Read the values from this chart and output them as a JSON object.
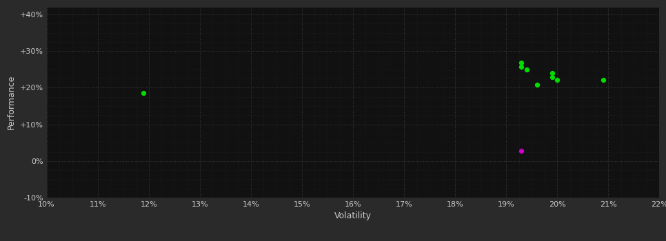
{
  "background_color": "#2a2a2a",
  "plot_bg_color": "#111111",
  "grid_color": "#444444",
  "text_color": "#cccccc",
  "xlabel": "Volatility",
  "ylabel": "Performance",
  "xlim": [
    0.1,
    0.22
  ],
  "ylim": [
    -0.1,
    0.42
  ],
  "xticks": [
    0.1,
    0.11,
    0.12,
    0.13,
    0.14,
    0.15,
    0.16,
    0.17,
    0.18,
    0.19,
    0.2,
    0.21,
    0.22
  ],
  "yticks": [
    -0.1,
    0.0,
    0.1,
    0.2,
    0.3,
    0.4
  ],
  "ytick_labels": [
    "-10%",
    "0%",
    "+10%",
    "+20%",
    "+30%",
    "+40%"
  ],
  "green_points": [
    [
      0.119,
      0.185
    ],
    [
      0.193,
      0.268
    ],
    [
      0.193,
      0.258
    ],
    [
      0.194,
      0.25
    ],
    [
      0.196,
      0.208
    ],
    [
      0.199,
      0.24
    ],
    [
      0.199,
      0.23
    ],
    [
      0.2,
      0.222
    ],
    [
      0.209,
      0.222
    ]
  ],
  "magenta_points": [
    [
      0.193,
      0.028
    ]
  ],
  "point_size": 18,
  "green_color": "#00dd00",
  "magenta_color": "#cc00cc",
  "minor_grid_color": "#2a2a2a",
  "minor_per_major": 4
}
